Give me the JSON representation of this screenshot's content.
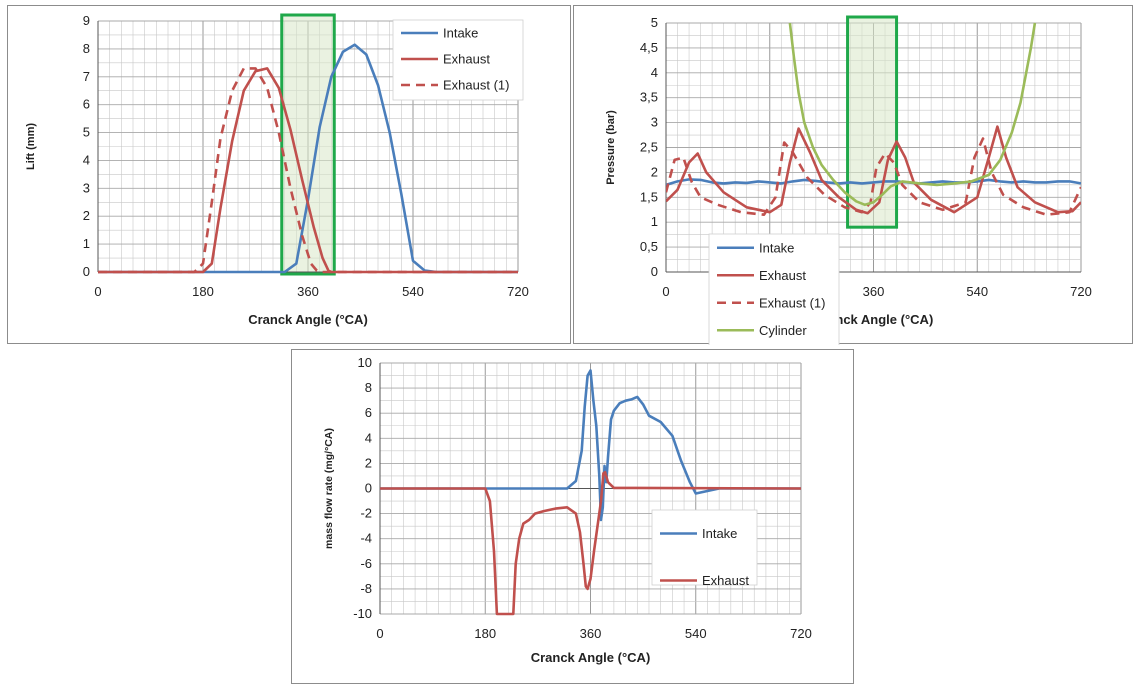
{
  "colors": {
    "intake": "#4a7ebb",
    "exhaust": "#c0504d",
    "cylinder": "#9bbb59",
    "highlight_stroke": "#1fa84a",
    "highlight_fill": "#d8e8c8",
    "grid": "#c8c8c8"
  },
  "chart_data": [
    {
      "type": "line",
      "xlabel": "Cranck Angle (°CA)",
      "ylabel": "Lift (mm)",
      "xlim": [
        0,
        720
      ],
      "ylim": [
        0,
        9
      ],
      "xticks": [
        "0",
        "180",
        "360",
        "540",
        "720"
      ],
      "yticks": [
        "0",
        "1",
        "2",
        "3",
        "4",
        "5",
        "6",
        "7",
        "8",
        "9"
      ],
      "legend_position": "top-right",
      "highlight_x": [
        315,
        405
      ],
      "series": [
        {
          "name": "Intake",
          "color": "intake",
          "dash": false,
          "x": [
            0,
            320,
            340,
            360,
            380,
            400,
            420,
            440,
            460,
            480,
            500,
            520,
            540,
            560,
            580,
            720
          ],
          "y": [
            0,
            0,
            0.3,
            2.6,
            5.2,
            7.0,
            7.9,
            8.15,
            7.8,
            6.7,
            5.0,
            2.8,
            0.4,
            0.05,
            0,
            0
          ]
        },
        {
          "name": "Exhaust",
          "color": "exhaust",
          "dash": false,
          "x": [
            0,
            180,
            195,
            210,
            230,
            250,
            270,
            290,
            310,
            330,
            350,
            370,
            385,
            395,
            400,
            720
          ],
          "y": [
            0,
            0,
            0.3,
            2.3,
            4.7,
            6.5,
            7.2,
            7.3,
            6.6,
            5.1,
            3.3,
            1.6,
            0.5,
            0.05,
            0,
            0
          ]
        },
        {
          "name": "Exhaust (1)",
          "color": "exhaust",
          "dash": true,
          "x": [
            0,
            165,
            180,
            195,
            210,
            230,
            250,
            270,
            290,
            310,
            330,
            350,
            365,
            375,
            380,
            720
          ],
          "y": [
            0,
            0,
            0.3,
            2.5,
            4.8,
            6.5,
            7.3,
            7.3,
            6.6,
            5.0,
            3.0,
            1.3,
            0.3,
            0.05,
            0,
            0
          ]
        }
      ]
    },
    {
      "type": "line",
      "xlabel": "Cranck Angle (°CA)",
      "ylabel": "Pressure (bar)",
      "xlim": [
        0,
        720
      ],
      "ylim": [
        0,
        5
      ],
      "xticks": [
        "0",
        "180",
        "360",
        "540",
        "720"
      ],
      "yticks": [
        "0",
        "0,5",
        "1",
        "1,5",
        "2",
        "2,5",
        "3",
        "3,5",
        "4",
        "4,5",
        "5"
      ],
      "legend_position": "bottom-left",
      "highlight_x": [
        315,
        400
      ],
      "series": [
        {
          "name": "Intake",
          "color": "intake",
          "dash": false,
          "x": [
            0,
            20,
            40,
            60,
            80,
            100,
            120,
            140,
            160,
            180,
            200,
            220,
            240,
            260,
            280,
            300,
            320,
            340,
            360,
            380,
            400,
            420,
            440,
            460,
            480,
            500,
            520,
            540,
            560,
            580,
            600,
            620,
            640,
            660,
            680,
            700,
            720
          ],
          "y": [
            1.75,
            1.82,
            1.86,
            1.85,
            1.8,
            1.78,
            1.8,
            1.79,
            1.82,
            1.8,
            1.78,
            1.82,
            1.85,
            1.83,
            1.8,
            1.78,
            1.8,
            1.78,
            1.8,
            1.82,
            1.82,
            1.8,
            1.78,
            1.8,
            1.82,
            1.8,
            1.8,
            1.82,
            1.85,
            1.82,
            1.8,
            1.82,
            1.8,
            1.8,
            1.82,
            1.82,
            1.78
          ]
        },
        {
          "name": "Exhaust",
          "color": "exhaust",
          "dash": false,
          "x": [
            0,
            20,
            40,
            55,
            70,
            100,
            140,
            180,
            200,
            215,
            230,
            250,
            270,
            300,
            330,
            350,
            370,
            385,
            400,
            415,
            430,
            460,
            500,
            540,
            560,
            575,
            590,
            610,
            640,
            680,
            705,
            720
          ],
          "y": [
            1.42,
            1.65,
            2.2,
            2.38,
            2.0,
            1.6,
            1.3,
            1.2,
            1.35,
            2.2,
            2.88,
            2.4,
            1.85,
            1.5,
            1.25,
            1.18,
            1.4,
            2.25,
            2.62,
            2.3,
            1.8,
            1.45,
            1.2,
            1.5,
            2.3,
            2.92,
            2.3,
            1.7,
            1.4,
            1.2,
            1.22,
            1.4
          ]
        },
        {
          "name": "Exhaust (1)",
          "color": "exhaust",
          "dash": true,
          "x": [
            0,
            15,
            30,
            45,
            60,
            90,
            130,
            170,
            190,
            205,
            220,
            245,
            275,
            310,
            340,
            355,
            365,
            380,
            395,
            410,
            440,
            480,
            520,
            535,
            550,
            565,
            585,
            620,
            660,
            700,
            710,
            720
          ],
          "y": [
            1.6,
            2.25,
            2.3,
            1.8,
            1.5,
            1.35,
            1.2,
            1.15,
            1.5,
            2.6,
            2.4,
            1.9,
            1.55,
            1.3,
            1.2,
            1.4,
            2.1,
            2.38,
            2.2,
            1.75,
            1.4,
            1.25,
            1.4,
            2.3,
            2.68,
            2.0,
            1.55,
            1.3,
            1.15,
            1.2,
            1.45,
            1.7
          ]
        },
        {
          "name": "Cylinder",
          "color": "cylinder",
          "dash": false,
          "x": [
            215,
            222,
            230,
            240,
            255,
            270,
            290,
            310,
            330,
            345,
            360,
            375,
            390,
            410,
            440,
            470,
            500,
            530,
            560,
            580,
            600,
            615,
            625,
            633,
            640
          ],
          "y": [
            5.0,
            4.3,
            3.6,
            3.0,
            2.5,
            2.15,
            1.85,
            1.6,
            1.42,
            1.35,
            1.4,
            1.55,
            1.72,
            1.82,
            1.78,
            1.75,
            1.78,
            1.82,
            1.95,
            2.25,
            2.8,
            3.4,
            4.0,
            4.5,
            5.0
          ]
        }
      ]
    },
    {
      "type": "line",
      "xlabel": "Cranck Angle (°CA)",
      "ylabel": "mass flow rate (mg/°CA)",
      "xlim": [
        0,
        720
      ],
      "ylim": [
        -10,
        10
      ],
      "xticks": [
        "0",
        "180",
        "360",
        "540",
        "720"
      ],
      "yticks": [
        "-10",
        "-8",
        "-6",
        "-4",
        "-2",
        "0",
        "2",
        "4",
        "6",
        "8",
        "10"
      ],
      "legend_position": "bottom-right",
      "series": [
        {
          "name": "Intake",
          "color": "intake",
          "dash": false,
          "x": [
            0,
            320,
            335,
            345,
            350,
            355,
            360,
            365,
            370,
            375,
            378,
            381,
            384,
            387,
            390,
            395,
            400,
            410,
            420,
            430,
            440,
            450,
            460,
            480,
            500,
            515,
            530,
            540,
            560,
            580,
            720
          ],
          "y": [
            0,
            0,
            0.6,
            3.0,
            6.5,
            9.0,
            9.4,
            7.0,
            5.0,
            1.0,
            -2.5,
            -1.5,
            1.8,
            0.5,
            2.5,
            5.5,
            6.2,
            6.8,
            7.0,
            7.1,
            7.3,
            6.7,
            5.8,
            5.3,
            4.2,
            2.2,
            0.5,
            -0.4,
            -0.2,
            0,
            0
          ]
        },
        {
          "name": "Exhaust",
          "color": "exhaust",
          "dash": false,
          "x": [
            0,
            180,
            188,
            195,
            200,
            205,
            228,
            232,
            238,
            245,
            255,
            265,
            280,
            300,
            320,
            335,
            342,
            348,
            352,
            355,
            360,
            366,
            372,
            378,
            382,
            385,
            390,
            400,
            720
          ],
          "y": [
            0,
            0,
            -1.0,
            -5.0,
            -10.0,
            -10.0,
            -10.0,
            -6.0,
            -4.0,
            -2.8,
            -2.5,
            -2.0,
            -1.8,
            -1.6,
            -1.5,
            -2.0,
            -3.5,
            -6.0,
            -7.8,
            -8.0,
            -7.2,
            -5.0,
            -3.0,
            -1.0,
            1.2,
            1.3,
            0.5,
            0.05,
            0
          ]
        }
      ]
    }
  ]
}
